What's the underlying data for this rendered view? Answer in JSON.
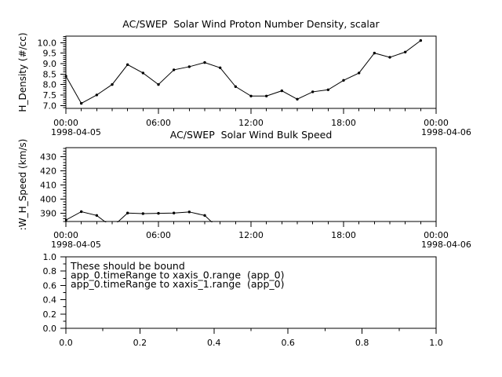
{
  "colors": {
    "foreground": "#000000",
    "background": "#ffffff"
  },
  "chart_data": [
    {
      "type": "line",
      "title": "AC/SWEP  Solar Wind Proton Number Density, scalar",
      "ylabel": "H_Density (#/cc)",
      "x_unit": "hours since 1998-04-05 00:00",
      "x": [
        0,
        1,
        2,
        3,
        4,
        5,
        6,
        7,
        8,
        9,
        10,
        11,
        12,
        13,
        14,
        15,
        16,
        17,
        18,
        19,
        20,
        21,
        22,
        23
      ],
      "values": [
        8.4,
        7.1,
        7.5,
        8.0,
        8.95,
        8.55,
        8.0,
        8.7,
        8.85,
        9.05,
        8.8,
        7.9,
        7.45,
        7.45,
        7.7,
        7.3,
        7.65,
        7.75,
        8.2,
        8.55,
        9.5,
        9.3,
        9.55,
        10.1
      ],
      "xlim": [
        0,
        24
      ],
      "ylim": [
        6.86,
        10.31
      ],
      "grid": false,
      "legend": null,
      "marker": "filled-circle",
      "line_color": "#000000",
      "xticks": {
        "major": [
          0,
          6,
          12,
          18,
          24
        ],
        "labels": [
          "00:00",
          "06:00",
          "12:00",
          "18:00",
          "00:00"
        ],
        "minor_step": 1
      },
      "yticks": {
        "major": [
          7.0,
          7.5,
          8.0,
          8.5,
          9.0,
          9.5,
          10.0
        ],
        "labels": [
          "7.0",
          "7.5",
          "8.0",
          "8.5",
          "9.0",
          "9.5",
          "10.0"
        ],
        "minor_step": 0.1
      },
      "date_left": "1998-04-05",
      "date_right": "1998-04-06"
    },
    {
      "type": "line",
      "title": "AC/SWEP  Solar Wind Bulk Speed",
      "ylabel": ":W_H_Speed (km/s)",
      "x_unit": "hours since 1998-04-05 00:00",
      "x": [
        0,
        1,
        2,
        3,
        4,
        5,
        6,
        7,
        8,
        9,
        10
      ],
      "values": [
        385,
        391,
        388.3,
        380,
        390,
        389.6,
        389.8,
        390,
        390.8,
        388.3,
        378
      ],
      "xlim": [
        0,
        24
      ],
      "ylim": [
        384,
        436.5
      ],
      "grid": false,
      "legend": null,
      "marker": "filled-circle",
      "line_color": "#000000",
      "xticks": {
        "major": [
          0,
          6,
          12,
          18,
          24
        ],
        "labels": [
          "00:00",
          "06:00",
          "12:00",
          "18:00",
          "00:00"
        ],
        "minor_step": 1
      },
      "yticks": {
        "major": [
          390,
          400,
          410,
          420,
          430
        ],
        "labels": [
          "390",
          "400",
          "410",
          "420",
          "430"
        ],
        "minor_step": 2
      },
      "date_left": "1998-04-05",
      "date_right": "1998-04-06"
    },
    {
      "type": "empty",
      "annotation_lines": [
        "These should be bound",
        "app_0.timeRange to xaxis_0.range  (app_0)",
        "app_0.timeRange to xaxis_1.range  (app_0)"
      ],
      "xlim": [
        0,
        1
      ],
      "ylim": [
        0,
        1
      ],
      "grid": false,
      "xticks": {
        "major": [
          0,
          0.2,
          0.4,
          0.6,
          0.8,
          1.0
        ],
        "labels": [
          "0.0",
          "0.2",
          "0.4",
          "0.6",
          "0.8",
          "1.0"
        ],
        "minor_step": 0.1
      },
      "yticks": {
        "major": [
          0,
          0.2,
          0.4,
          0.6,
          0.8,
          1.0
        ],
        "labels": [
          "0.0",
          "0.2",
          "0.4",
          "0.6",
          "0.8",
          "1.0"
        ],
        "minor_step": 0.1
      }
    }
  ]
}
